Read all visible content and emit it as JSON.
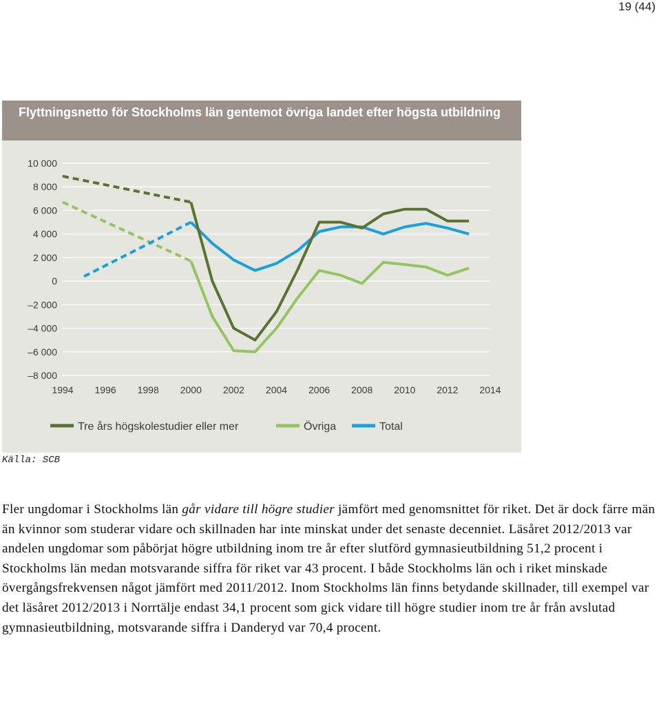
{
  "page_number": "19 (44)",
  "source": "Källa: SCB",
  "paragraph": {
    "before": "Fler ungdomar i Stockholms län ",
    "emphasis": "går vidare till högre studier",
    "after": " jämfört med genomsnittet för riket. Det är dock färre män än kvinnor som studerar vidare och skillnaden har inte minskat under det senaste decenniet. Läsåret 2012/2013 var andelen ungdomar som påbörjat högre utbildning inom tre år efter slutförd gymnasieutbildning 51,2 procent i Stockholms län medan motsvarande siffra för riket var 43 procent. I både Stockholms län och i riket minskade övergångsfrekvensen något jämfört med 2011/2012. Inom Stockholms län finns betydande skillnader, till exempel var det läsåret 2012/2013 i Norrtälje endast 34,1 procent som gick vidare till högre studier inom tre år från avslutad gymnasieutbildning, motsvarande siffra i Danderyd var 70,4 procent."
  },
  "chart_data": {
    "type": "line",
    "title": "Flyttningsnetto för Stockholms län gentemot övriga landet efter högsta utbildning",
    "xlabel": "",
    "ylabel": "",
    "xlim": [
      1994,
      2014
    ],
    "ylim": [
      -8000,
      10000
    ],
    "x_ticks": [
      1994,
      1996,
      1998,
      2000,
      2002,
      2004,
      2006,
      2008,
      2010,
      2012,
      2014
    ],
    "x_tick_labels": [
      "1994",
      "1996",
      "1998",
      "2000",
      "2002",
      "2004",
      "2006",
      "2008",
      "2010",
      "2012",
      "2014"
    ],
    "y_ticks": [
      10000,
      8000,
      6000,
      4000,
      2000,
      0,
      -2000,
      -4000,
      -6000,
      -8000
    ],
    "y_tick_labels": [
      "10 000",
      "8 000",
      "6 000",
      "4 000",
      "2 000",
      "0",
      "–2 000",
      "–4 000",
      "–6 000",
      "–8 000"
    ],
    "grid": "horizontal",
    "legend_position": "bottom",
    "series": [
      {
        "name": "Tre års högskolestudier eller mer",
        "color": "#5a7232",
        "dashed_x": [
          1994,
          2000
        ],
        "dashed_y": [
          8900,
          6700
        ],
        "x": [
          2000,
          2001,
          2002,
          2003,
          2004,
          2005,
          2006,
          2007,
          2008,
          2009,
          2010,
          2011,
          2012,
          2013
        ],
        "y": [
          6700,
          0,
          -4000,
          -5000,
          -2600,
          1000,
          5000,
          5000,
          4500,
          5700,
          6100,
          6100,
          5100,
          5100
        ]
      },
      {
        "name": "Övriga",
        "color": "#94c561",
        "dashed_x": [
          1994,
          2000
        ],
        "dashed_y": [
          6700,
          1700
        ],
        "x": [
          2000,
          2001,
          2002,
          2003,
          2004,
          2005,
          2006,
          2007,
          2008,
          2009,
          2010,
          2011,
          2012,
          2013
        ],
        "y": [
          1700,
          -3000,
          -5900,
          -6000,
          -4000,
          -1400,
          900,
          500,
          -200,
          1600,
          1400,
          1200,
          500,
          1100
        ]
      },
      {
        "name": "Total",
        "color": "#1aa0da",
        "dashed_x": [
          1995,
          2000
        ],
        "dashed_y": [
          400,
          5000
        ],
        "x": [
          2000,
          2001,
          2002,
          2003,
          2004,
          2005,
          2006,
          2007,
          2008,
          2009,
          2010,
          2011,
          2012,
          2013
        ],
        "y": [
          5000,
          3200,
          1800,
          900,
          1500,
          2600,
          4200,
          4600,
          4600,
          4000,
          4600,
          4900,
          4500,
          4000
        ]
      }
    ]
  }
}
